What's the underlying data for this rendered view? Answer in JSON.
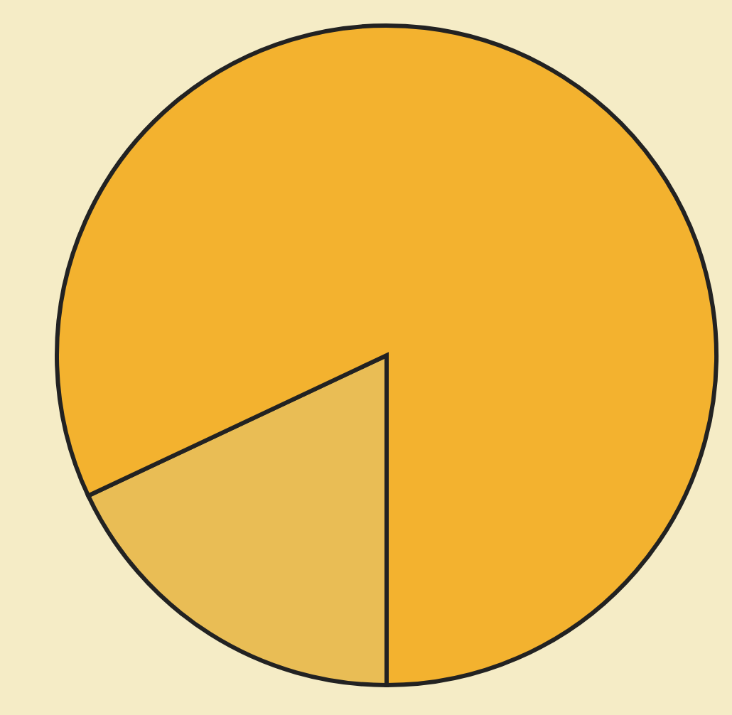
{
  "chart_data": {
    "type": "pie",
    "categories": [
      null,
      null
    ],
    "values": [
      18,
      82
    ],
    "colors": [
      "#e9bd55",
      "#f3b22f"
    ]
  }
}
